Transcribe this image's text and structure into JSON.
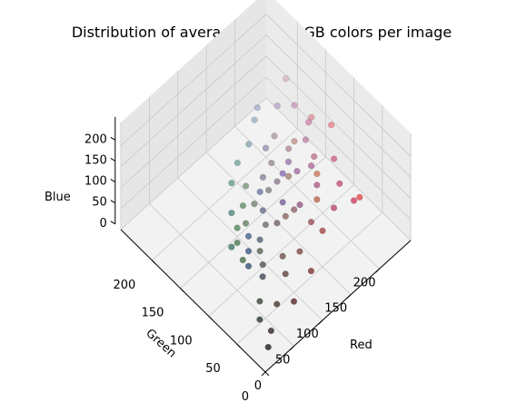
{
  "chart_data": {
    "type": "scatter",
    "projection": "3d",
    "title": "Distribution of average image RGB colors per image",
    "xlabel": "Red",
    "ylabel": "Green",
    "zlabel": "Blue",
    "xlim": [
      0,
      255
    ],
    "ylim": [
      0,
      255
    ],
    "zlim": [
      0,
      255
    ],
    "x_ticks": [
      "0",
      "50",
      "100",
      "150",
      "200"
    ],
    "y_ticks": [
      "0",
      "50",
      "100",
      "150",
      "200"
    ],
    "z_ticks": [
      "0",
      "50",
      "100",
      "150",
      "200"
    ],
    "x_tick_values": [
      0,
      50,
      100,
      150,
      200
    ],
    "y_tick_values": [
      0,
      50,
      100,
      150,
      200
    ],
    "z_tick_values": [
      0,
      50,
      100,
      150,
      200
    ],
    "grid": true,
    "marker_color": "each point colored by its own average RGB value",
    "points": [
      [
        20,
        15,
        15
      ],
      [
        35,
        25,
        22
      ],
      [
        60,
        40,
        35
      ],
      [
        90,
        55,
        50
      ],
      [
        120,
        60,
        60
      ],
      [
        150,
        70,
        80
      ],
      [
        180,
        60,
        90
      ],
      [
        205,
        50,
        90
      ],
      [
        225,
        60,
        60
      ],
      [
        200,
        70,
        110
      ],
      [
        170,
        80,
        130
      ],
      [
        140,
        80,
        120
      ],
      [
        110,
        90,
        100
      ],
      [
        80,
        90,
        70
      ],
      [
        60,
        100,
        60
      ],
      [
        50,
        110,
        90
      ],
      [
        70,
        130,
        120
      ],
      [
        90,
        150,
        140
      ],
      [
        110,
        160,
        150
      ],
      [
        130,
        160,
        170
      ],
      [
        150,
        170,
        190
      ],
      [
        160,
        175,
        200
      ],
      [
        180,
        160,
        200
      ],
      [
        200,
        150,
        190
      ],
      [
        215,
        180,
        195
      ],
      [
        60,
        90,
        130
      ],
      [
        50,
        80,
        120
      ],
      [
        40,
        70,
        110
      ],
      [
        100,
        110,
        160
      ],
      [
        130,
        100,
        180
      ],
      [
        150,
        110,
        170
      ],
      [
        175,
        95,
        150
      ],
      [
        190,
        105,
        140
      ],
      [
        210,
        90,
        130
      ],
      [
        100,
        70,
        60
      ],
      [
        130,
        95,
        85
      ],
      [
        160,
        120,
        110
      ],
      [
        190,
        140,
        130
      ],
      [
        45,
        55,
        40
      ],
      [
        30,
        40,
        35
      ],
      [
        70,
        75,
        70
      ],
      [
        100,
        100,
        95
      ],
      [
        125,
        120,
        120
      ],
      [
        145,
        135,
        140
      ],
      [
        165,
        150,
        160
      ],
      [
        85,
        120,
        90
      ],
      [
        95,
        135,
        100
      ],
      [
        110,
        145,
        115
      ],
      [
        115,
        85,
        150
      ],
      [
        140,
        90,
        95
      ],
      [
        180,
        90,
        70
      ],
      [
        200,
        110,
        80
      ],
      [
        160,
        60,
        60
      ],
      [
        120,
        40,
        40
      ],
      [
        80,
        30,
        30
      ],
      [
        55,
        60,
        80
      ],
      [
        75,
        85,
        110
      ],
      [
        95,
        100,
        135
      ],
      [
        120,
        125,
        150
      ],
      [
        140,
        140,
        175
      ],
      [
        170,
        130,
        150
      ],
      [
        190,
        120,
        160
      ],
      [
        205,
        130,
        170
      ],
      [
        220,
        140,
        150
      ],
      [
        235,
        120,
        140
      ],
      [
        65,
        115,
        75
      ],
      [
        75,
        125,
        85
      ],
      [
        105,
        125,
        105
      ],
      [
        135,
        115,
        135
      ],
      [
        155,
        100,
        155
      ]
    ]
  }
}
